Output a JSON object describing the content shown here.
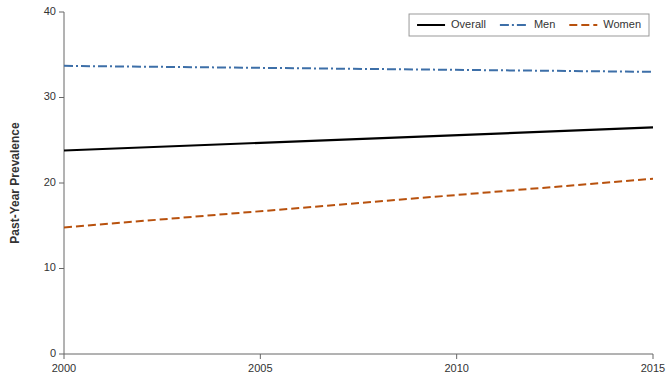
{
  "chart_data": {
    "type": "line",
    "x": [
      2000,
      2015
    ],
    "series": [
      {
        "name": "Overall",
        "color": "#000000",
        "line_style": "solid",
        "values": [
          23.8,
          26.5
        ]
      },
      {
        "name": "Men",
        "color": "#3d6fa8",
        "line_style": "dashdot",
        "values": [
          33.7,
          33.0
        ]
      },
      {
        "name": "Women",
        "color": "#b8510d",
        "line_style": "dashed",
        "values": [
          14.8,
          20.5
        ]
      }
    ],
    "xlim": [
      2000,
      2015
    ],
    "ylim": [
      0,
      40
    ],
    "xticks": [
      2000,
      2005,
      2010,
      2015
    ],
    "yticks": [
      0,
      10,
      20,
      30,
      40
    ],
    "ylabel": "Past-Year Prevalence",
    "legend": "upper right",
    "grid": false
  }
}
